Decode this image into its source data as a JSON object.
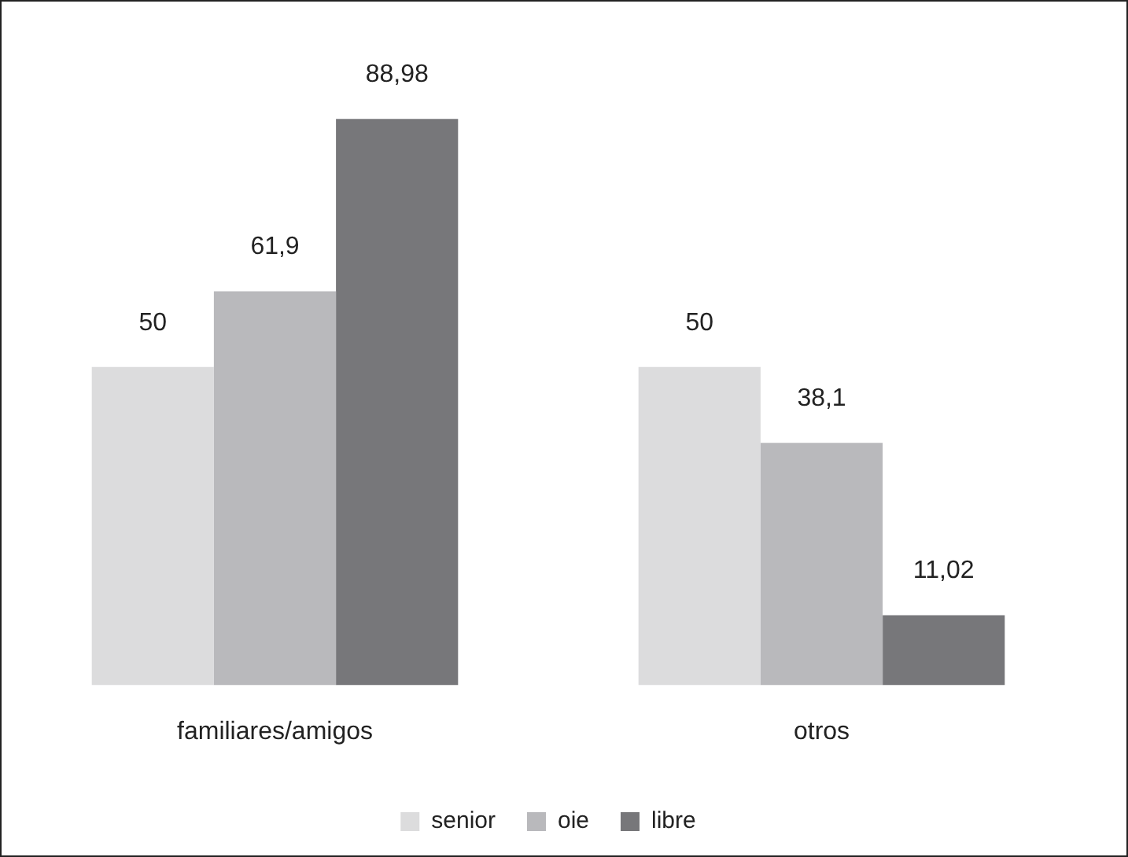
{
  "chart_data": {
    "type": "bar",
    "categories": [
      "familiares/amigos",
      "otros"
    ],
    "series": [
      {
        "name": "senior",
        "color": "#dcdcdd",
        "values": [
          50,
          50
        ],
        "value_labels": [
          "50",
          "50"
        ]
      },
      {
        "name": "oie",
        "color": "#b9b9bc",
        "values": [
          61.9,
          38.1
        ],
        "value_labels": [
          "61,9",
          "38,1"
        ]
      },
      {
        "name": "libre",
        "color": "#77777a",
        "values": [
          88.98,
          11.02
        ],
        "value_labels": [
          "88,98",
          "11,02"
        ]
      }
    ],
    "legend": "bottom",
    "grid": false
  }
}
